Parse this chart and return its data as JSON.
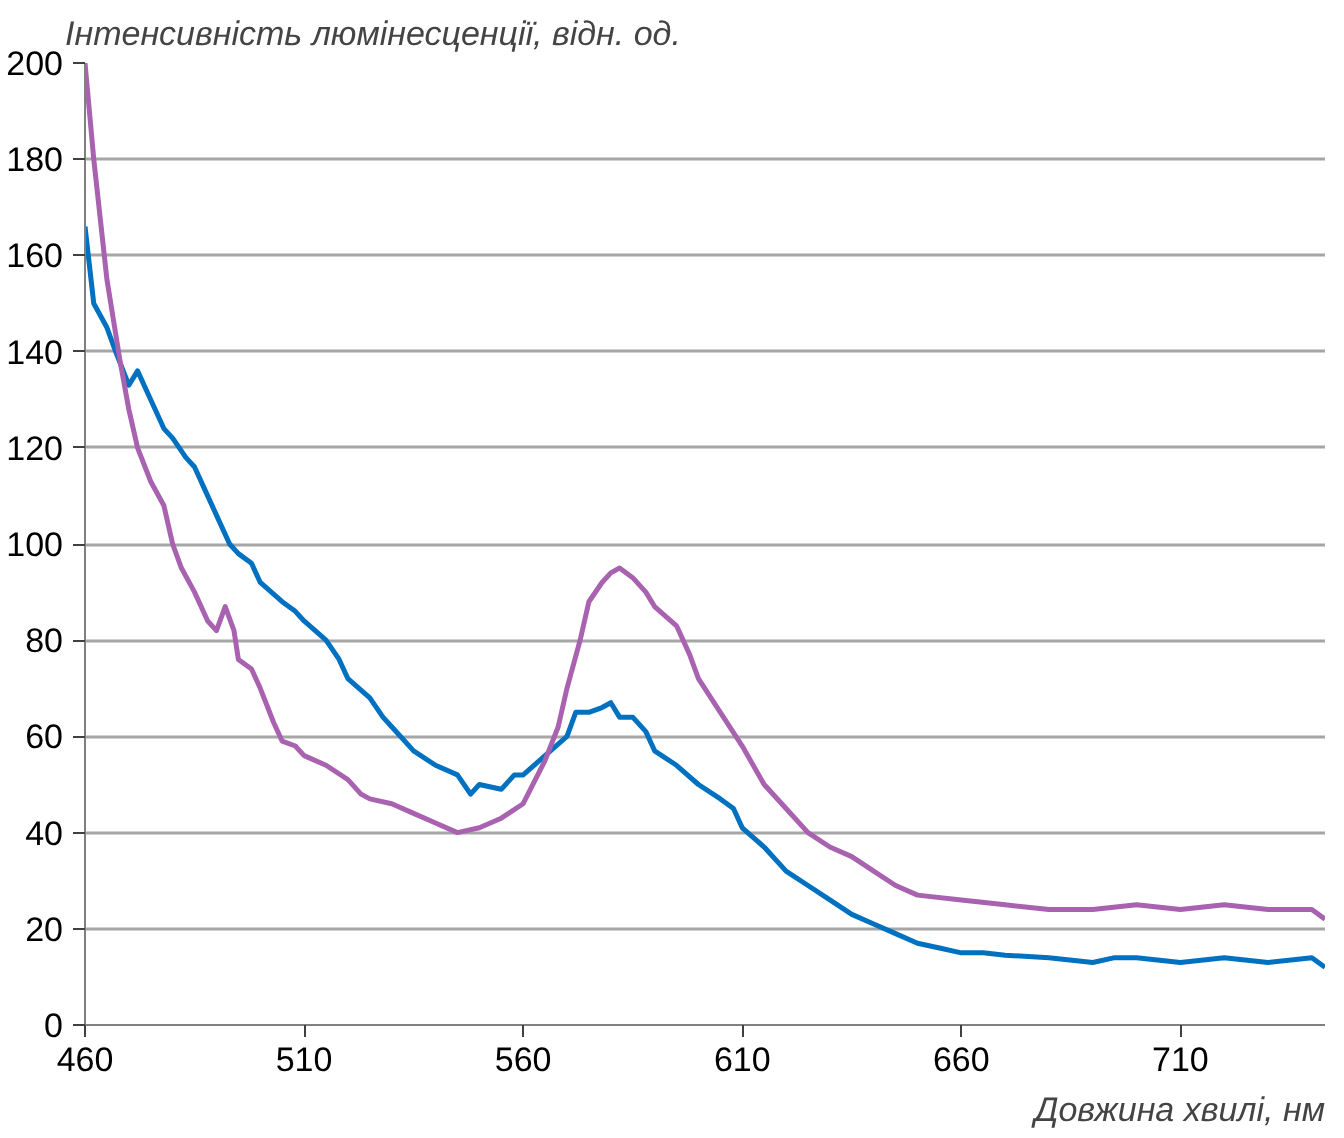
{
  "chart_data": {
    "type": "line",
    "ylabel": "Інтенсивність люмінесценції, відн. од.",
    "xlabel": "Довжина хвилі, нм",
    "xlim": [
      460,
      743
    ],
    "xticks": [
      460,
      510,
      560,
      610,
      660,
      710
    ],
    "ylim": [
      0,
      200
    ],
    "yticks": [
      0,
      20,
      40,
      60,
      80,
      100,
      120,
      140,
      160,
      180,
      200
    ],
    "grid": "y",
    "line_style": "solid",
    "series": [
      {
        "color": "#0070c0",
        "x": [
          460,
          462,
          465,
          467,
          470,
          472,
          475,
          478,
          480,
          483,
          485,
          488,
          490,
          493,
          495,
          498,
          500,
          505,
          508,
          510,
          515,
          518,
          520,
          525,
          528,
          530,
          535,
          540,
          545,
          548,
          550,
          555,
          558,
          560,
          565,
          570,
          572,
          575,
          578,
          580,
          582,
          585,
          588,
          590,
          595,
          600,
          605,
          608,
          610,
          615,
          620,
          625,
          630,
          635,
          640,
          645,
          650,
          655,
          660,
          665,
          670,
          680,
          690,
          695,
          700,
          710,
          720,
          730,
          740,
          743
        ],
        "values": [
          166,
          150,
          145,
          140,
          133,
          136,
          130,
          124,
          122,
          118,
          116,
          110,
          106,
          100,
          98,
          96,
          92,
          88,
          86,
          84,
          80,
          76,
          72,
          68,
          64,
          62,
          57,
          54,
          52,
          48,
          50,
          49,
          52,
          52,
          56,
          60,
          65,
          65,
          66,
          67,
          64,
          64,
          61,
          57,
          54,
          50,
          47,
          45,
          41,
          37,
          32,
          29,
          26,
          23,
          21,
          19,
          17,
          16,
          15,
          15,
          14.5,
          14,
          13,
          14,
          14,
          13,
          14,
          13,
          14,
          12
        ]
      },
      {
        "color": "#a862b0",
        "x": [
          460,
          462,
          465,
          468,
          470,
          472,
          475,
          478,
          480,
          482,
          485,
          488,
          490,
          492,
          494,
          495,
          498,
          500,
          503,
          505,
          508,
          510,
          515,
          520,
          523,
          525,
          530,
          535,
          540,
          545,
          550,
          555,
          560,
          565,
          568,
          570,
          573,
          575,
          578,
          580,
          582,
          585,
          588,
          590,
          595,
          598,
          600,
          605,
          610,
          615,
          620,
          625,
          630,
          635,
          640,
          645,
          650,
          660,
          670,
          680,
          690,
          700,
          710,
          720,
          730,
          740,
          743
        ],
        "values": [
          200,
          180,
          155,
          138,
          128,
          120,
          113,
          108,
          100,
          95,
          90,
          84,
          82,
          87,
          82,
          76,
          74,
          70,
          63,
          59,
          58,
          56,
          54,
          51,
          48,
          47,
          46,
          44,
          42,
          40,
          41,
          43,
          46,
          55,
          62,
          70,
          80,
          88,
          92,
          94,
          95,
          93,
          90,
          87,
          83,
          77,
          72,
          65,
          58,
          50,
          45,
          40,
          37,
          35,
          32,
          29,
          27,
          26,
          25,
          24,
          24,
          25,
          24,
          25,
          24,
          24,
          22
        ]
      }
    ]
  }
}
